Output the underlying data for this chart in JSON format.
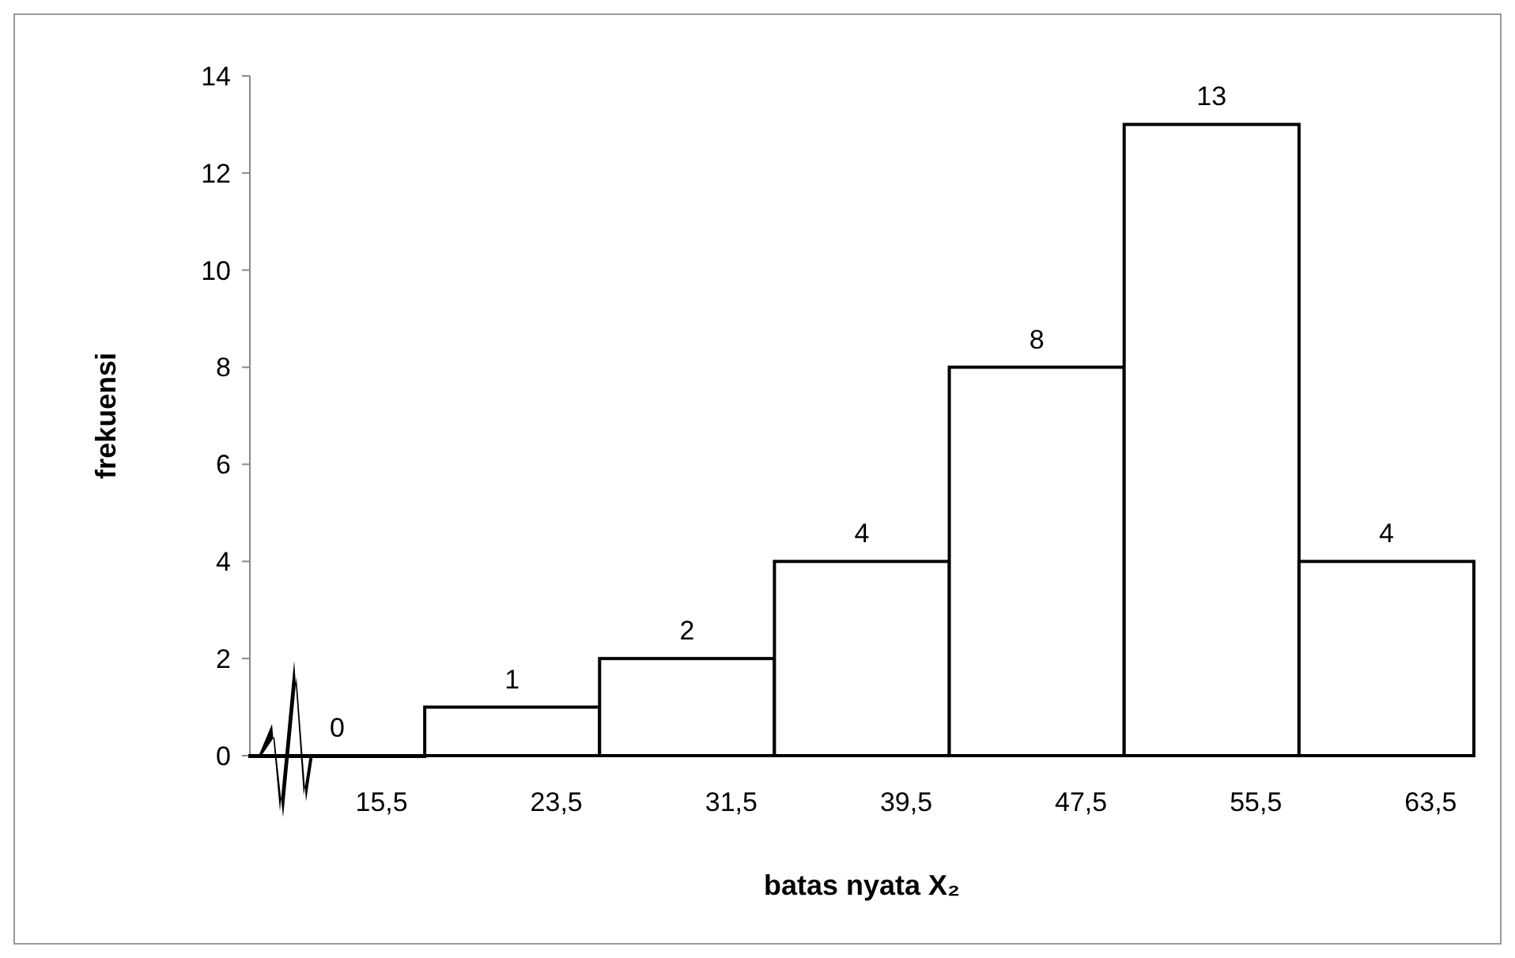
{
  "chart_data": {
    "type": "bar",
    "xlabel": "batas nyata X₂",
    "ylabel": "frekuensi",
    "categories": [
      "15,5",
      "23,5",
      "31,5",
      "39,5",
      "47,5",
      "55,5",
      "63,5"
    ],
    "values": [
      0,
      1,
      2,
      4,
      8,
      13,
      4
    ],
    "color": "#ffffff",
    "ylim": [
      0,
      14
    ],
    "yticks": [
      0,
      2,
      4,
      6,
      8,
      10,
      12,
      14
    ],
    "data_labels": true
  }
}
